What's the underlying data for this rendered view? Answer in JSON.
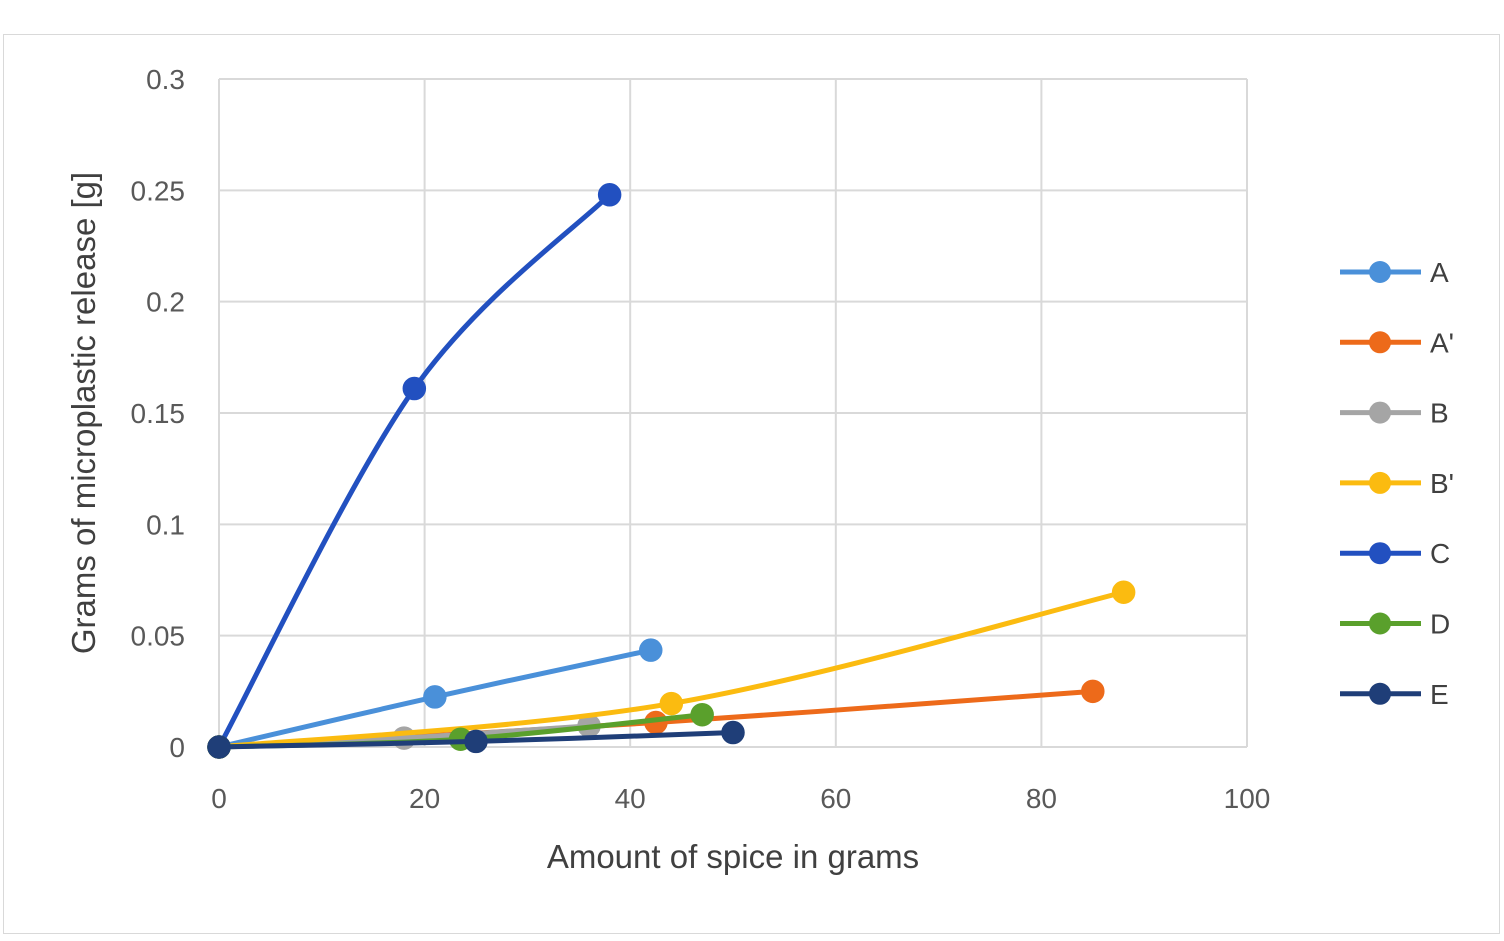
{
  "chart_data": {
    "type": "scatter",
    "title": "",
    "xlabel": "Amount of spice in grams",
    "ylabel": "Grams of microplastic release [g]",
    "xlim": [
      0,
      100
    ],
    "ylim": [
      0,
      0.3
    ],
    "xticks": [
      "0",
      "20",
      "40",
      "60",
      "80",
      "100"
    ],
    "yticks": [
      "0",
      "0.05",
      "0.1",
      "0.15",
      "0.2",
      "0.25",
      "0.3"
    ],
    "grid": true,
    "legend_position": "right",
    "smoothed_lines": true,
    "series": [
      {
        "name": "A",
        "color": "#4a90d9",
        "x": [
          0,
          21,
          42
        ],
        "y": [
          0,
          0.0225,
          0.0435
        ]
      },
      {
        "name": "A'",
        "color": "#ed6a1a",
        "x": [
          0,
          42.5,
          85
        ],
        "y": [
          0,
          0.011,
          0.025
        ]
      },
      {
        "name": "B",
        "color": "#a5a5a5",
        "x": [
          0,
          18,
          36
        ],
        "y": [
          0,
          0.004,
          0.0095
        ]
      },
      {
        "name": "B'",
        "color": "#fbbb10",
        "x": [
          0,
          44,
          88
        ],
        "y": [
          0,
          0.0195,
          0.0695
        ]
      },
      {
        "name": "C",
        "color": "#2250c0",
        "x": [
          0,
          19,
          38
        ],
        "y": [
          0,
          0.161,
          0.248
        ]
      },
      {
        "name": "D",
        "color": "#5aa02c",
        "x": [
          0,
          23.5,
          47
        ],
        "y": [
          0,
          0.0035,
          0.0145
        ]
      },
      {
        "name": "E",
        "color": "#1f3e78",
        "x": [
          0,
          25,
          50
        ],
        "y": [
          0,
          0.0025,
          0.0065
        ]
      }
    ]
  }
}
